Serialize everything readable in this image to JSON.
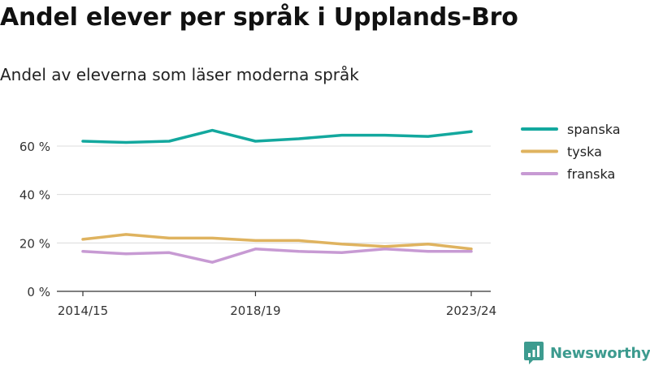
{
  "title": "Andel elever per språk i Upplands-Bro",
  "subtitle": "Andel av eleverna som läser moderna språk",
  "brand": {
    "name": "Newsworthy",
    "icon": "newsworthy-logo-icon",
    "color": "#3d9b8f"
  },
  "chart_data": {
    "type": "line",
    "x": [
      "2014/15",
      "2015/16",
      "2016/17",
      "2017/18",
      "2018/19",
      "2019/20",
      "2020/21",
      "2021/22",
      "2022/23",
      "2023/24"
    ],
    "x_tick_labels": [
      "2014/15",
      "2018/19",
      "2023/24"
    ],
    "y_ticks": [
      0,
      20,
      40,
      60
    ],
    "y_tick_labels": [
      "0 %",
      "20 %",
      "40 %",
      "60 %"
    ],
    "ylim": [
      0,
      70
    ],
    "grid": true,
    "legend_position": "right",
    "series": [
      {
        "name": "spanska",
        "color": "#13a89e",
        "values": [
          62,
          61.5,
          62,
          66.5,
          62,
          63,
          64.5,
          64.5,
          64,
          66
        ]
      },
      {
        "name": "tyska",
        "color": "#dfb35f",
        "values": [
          21.5,
          23.5,
          22,
          22,
          21,
          21,
          19.5,
          18.5,
          19.5,
          17.5
        ]
      },
      {
        "name": "franska",
        "color": "#c79ad3",
        "values": [
          16.5,
          15.5,
          16,
          12,
          17.5,
          16.5,
          16,
          17.5,
          16.5,
          16.5
        ]
      }
    ]
  }
}
